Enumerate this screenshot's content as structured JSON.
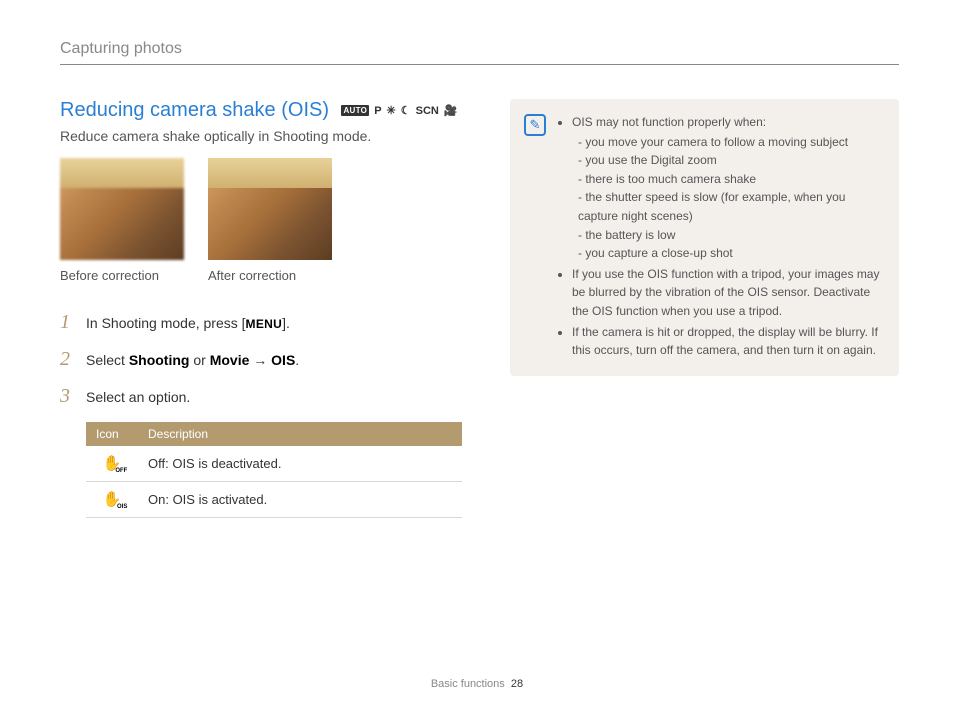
{
  "breadcrumb": "Capturing photos",
  "section": {
    "title": "Reducing camera shake (OIS)",
    "subtitle": "Reduce camera shake optically in Shooting mode.",
    "mode_icons": {
      "auto": "AUTO",
      "p": "P",
      "dual": "✳",
      "night": "☾",
      "scn": "SCN",
      "movie": "🎥"
    }
  },
  "captions": {
    "before": "Before correction",
    "after": "After correction"
  },
  "steps": [
    {
      "num": "1",
      "html_parts": [
        "In Shooting mode, press [",
        "MENU",
        "]."
      ]
    },
    {
      "num": "2",
      "html_parts": [
        "Select ",
        "Shooting",
        " or ",
        "Movie",
        " → ",
        "OIS",
        "."
      ]
    },
    {
      "num": "3",
      "html_parts": [
        "Select an option."
      ]
    }
  ],
  "table": {
    "headers": [
      "Icon",
      "Description"
    ],
    "rows": [
      {
        "icon_sub": "OFF",
        "label": "Off",
        "desc": ": OIS is deactivated."
      },
      {
        "icon_sub": "OIS",
        "label": "On",
        "desc": ": OIS is activated."
      }
    ]
  },
  "note": {
    "bullets": [
      {
        "text": "OIS may not function properly when:",
        "sub": [
          "you move your camera to follow a moving subject",
          "you use the Digital zoom",
          "there is too much camera shake",
          "the shutter speed is slow (for example, when you capture night scenes)",
          "the battery is low",
          "you capture a close-up shot"
        ]
      },
      {
        "text": "If you use the OIS function with a tripod, your images may be blurred by the vibration of the OIS sensor. Deactivate the OIS function when you use a tripod."
      },
      {
        "text": "If the camera is hit or dropped, the display will be blurry. If this occurs, turn off the camera, and then turn it on again."
      }
    ]
  },
  "footer": {
    "section": "Basic functions",
    "page": "28"
  }
}
